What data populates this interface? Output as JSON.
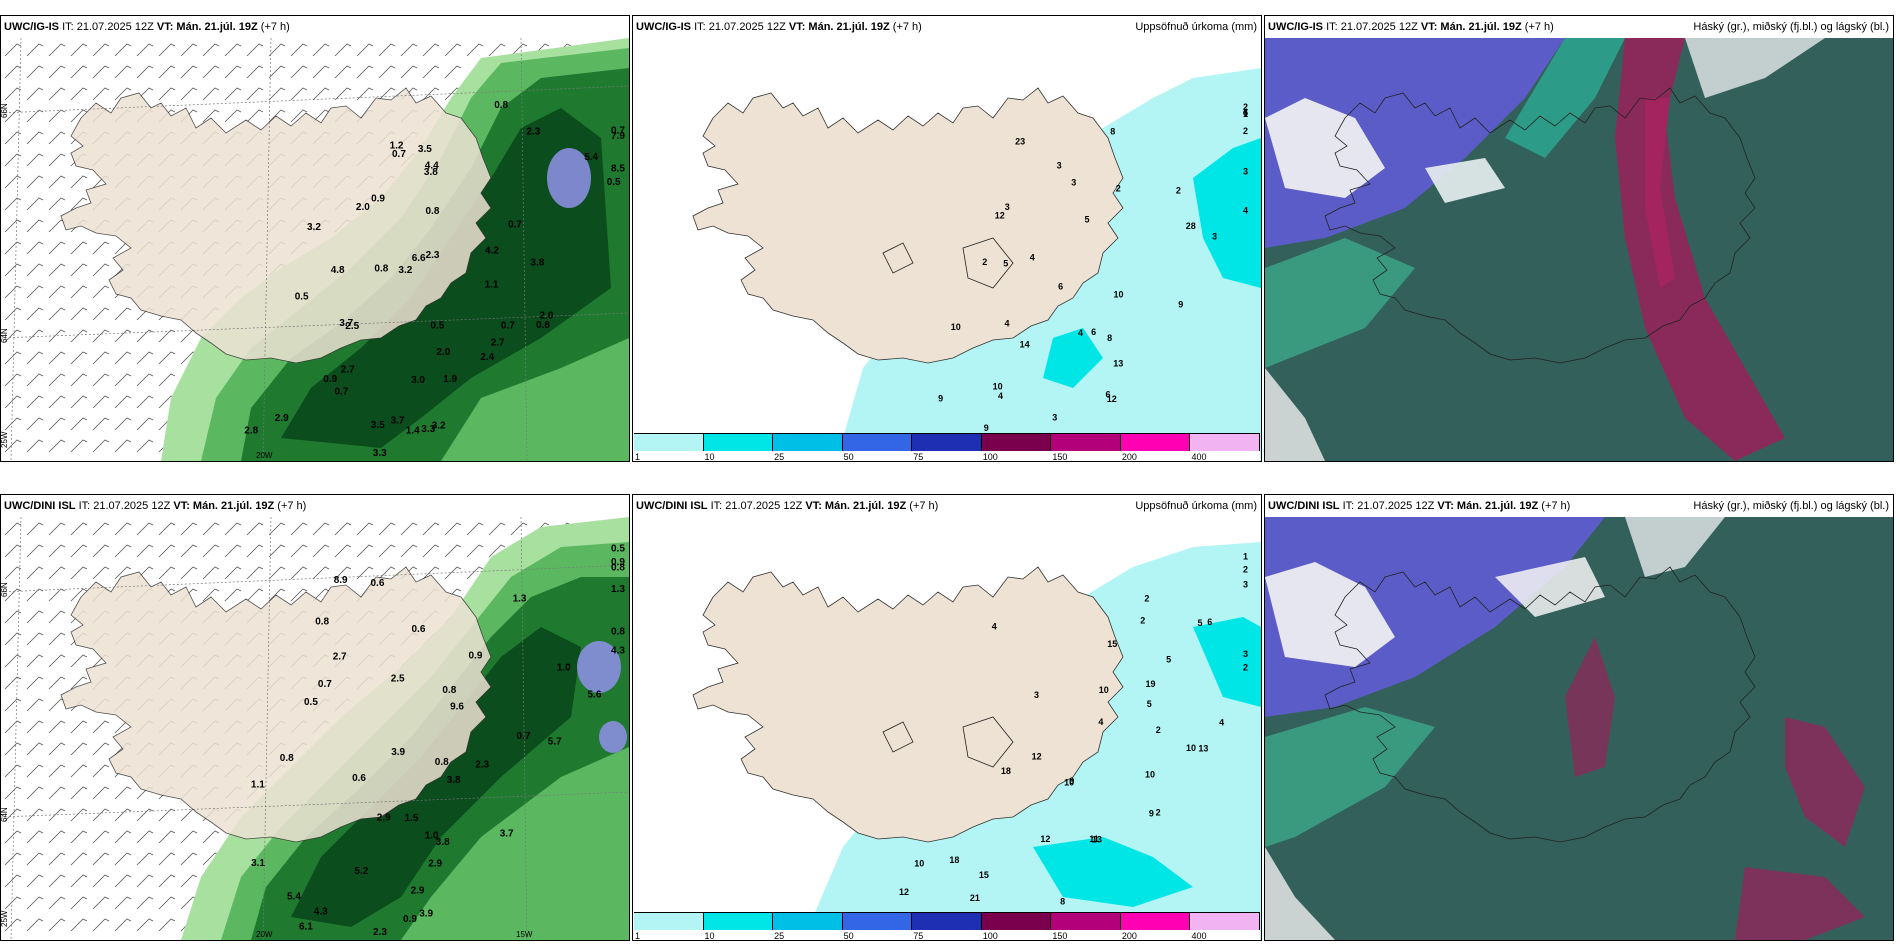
{
  "panels": [
    {
      "model": "UWC/IG-IS",
      "it": "IT: 21.07.2025 12Z",
      "vt": "VT: Mán. 21.júl. 19Z",
      "lead": "(+7 h)",
      "title": ""
    },
    {
      "model": "UWC/IG-IS",
      "it": "IT: 21.07.2025 12Z",
      "vt": "VT: Mán. 21.júl. 19Z",
      "lead": "(+7 h)",
      "title": "Uppsöfnuð úrkoma (mm)"
    },
    {
      "model": "UWC/IG-IS",
      "it": "IT: 21.07.2025 12Z",
      "vt": "VT: Mán. 21.júl. 19Z",
      "lead": "(+7 h)",
      "title": "Háský (gr.), miðský (fj.bl.) og lágský (bl.)"
    },
    {
      "model": "UWC/DINI ISL",
      "it": "IT: 21.07.2025 12Z",
      "vt": "VT: Mán. 21.júl. 19Z",
      "lead": "(+7 h)",
      "title": ""
    },
    {
      "model": "UWC/DINI ISL",
      "it": "IT: 21.07.2025 12Z",
      "vt": "VT: Mán. 21.júl. 19Z",
      "lead": "(+7 h)",
      "title": "Uppsöfnuð úrkoma (mm)"
    },
    {
      "model": "UWC/DINI ISL",
      "it": "IT: 21.07.2025 12Z",
      "vt": "VT: Mán. 21.júl. 19Z",
      "lead": "(+7 h)",
      "title": "Háský (gr.), miðský (fj.bl.) og lágský (bl.)"
    }
  ],
  "axis_labels": {
    "lat66": "66N",
    "lat64": "64N",
    "lon25": "25W",
    "lon20": "20W",
    "lon15": "15W"
  },
  "colorbar": {
    "labels": [
      "1",
      "10",
      "25",
      "50",
      "75",
      "100",
      "150",
      "200",
      "400"
    ],
    "colors": [
      "#b3f5f5",
      "#00e6e6",
      "#00bfe6",
      "#3366e6",
      "#1f2fb3",
      "#7a004d",
      "#b3007a",
      "#ff00b3",
      "#f2b3f2"
    ]
  },
  "precip_labels_top": [
    "0.7",
    "0.8",
    "1.2",
    "2.3",
    "3.5",
    "7.9",
    "0.7",
    "4.4",
    "5.4",
    "3.8",
    "8.5",
    "0.5",
    "0.9",
    "0.8",
    "0.7",
    "2.0",
    "3.2",
    "6.6",
    "4.2",
    "0.8",
    "2.3",
    "3.8",
    "3.2",
    "4.8",
    "0.5",
    "1.1",
    "2.0",
    "0.7",
    "0.5",
    "0.8",
    "3.7",
    "2.5",
    "2.0",
    "2.7",
    "0.9",
    "2.7",
    "2.4",
    "1.9",
    "0.7",
    "3.0",
    "2.9",
    "2.8",
    "3.5",
    "1.4",
    "3.7",
    "3.2",
    "3.3",
    "3.3"
  ],
  "precip_labels_bot": [
    "0.5",
    "0.8",
    "0.9",
    "1.3",
    "8.9",
    "0.6",
    "1.3",
    "0.8",
    "0.8",
    "0.6",
    "2.7",
    "4.3",
    "0.9",
    "1.0",
    "0.7",
    "0.8",
    "2.5",
    "5.6",
    "9.6",
    "0.5",
    "0.7",
    "0.8",
    "3.9",
    "5.7",
    "0.6",
    "0.8",
    "2.3",
    "3.8",
    "1.1",
    "1.5",
    "2.9",
    "3.7",
    "1.0",
    "3.1",
    "3.8",
    "5.2",
    "2.9",
    "2.9",
    "5.4",
    "3.9",
    "4.3",
    "6.1",
    "2.3",
    "0.9"
  ],
  "accum_labels_top": [
    "4",
    "1",
    "6",
    "2",
    "2",
    "8",
    "23",
    "3",
    "3",
    "2",
    "2",
    "3",
    "3",
    "5",
    "4",
    "12",
    "28",
    "3",
    "2",
    "5",
    "4",
    "10",
    "9",
    "6",
    "10",
    "4",
    "8",
    "6",
    "4",
    "14",
    "13",
    "10",
    "12",
    "6",
    "3",
    "4",
    "9",
    "14",
    "9"
  ],
  "accum_labels_bot": [
    "2",
    "1",
    "3",
    "2",
    "2",
    "5",
    "4",
    "6",
    "15",
    "2",
    "3",
    "5",
    "3",
    "10",
    "19",
    "4",
    "5",
    "2",
    "4",
    "10",
    "18",
    "13",
    "12",
    "9",
    "10",
    "10",
    "2",
    "9",
    "11",
    "13",
    "12",
    "18",
    "15",
    "10",
    "21",
    "12",
    "8",
    "9"
  ]
}
